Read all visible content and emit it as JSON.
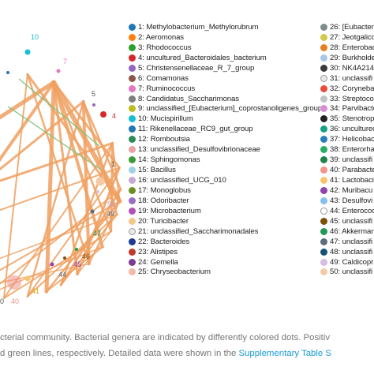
{
  "network": {
    "node_labels": [
      "10",
      "7",
      "5",
      "4",
      "1",
      "50",
      "49",
      "47",
      "46",
      "45",
      "44",
      "41",
      "40",
      "0"
    ]
  },
  "legend": {
    "col1": [
      {
        "label": "1: Methylobacterium_Methylorubrum",
        "color": "#1f77b4"
      },
      {
        "label": "2: Aeromonas",
        "color": "#ff7f0e"
      },
      {
        "label": "3: Rhodococcus",
        "color": "#2ca02c"
      },
      {
        "label": "4: uncultured_Bacteroidales_bacterium",
        "color": "#d62728"
      },
      {
        "label": "5: Christensenellaceae_R_7_group",
        "color": "#9467bd"
      },
      {
        "label": "6: Comamonas",
        "color": "#8c564b"
      },
      {
        "label": "7: Ruminococcus",
        "color": "#e377c2"
      },
      {
        "label": "8: Candidatus_Saccharimonas",
        "color": "#7f7f7f"
      },
      {
        "label": "9: unclassified_[Eubacterium]_coprostanoligenes_group",
        "color": "#bcbd22"
      },
      {
        "label": "10: Mucispirillum",
        "color": "#17becf"
      },
      {
        "label": "11: Rikenellaceae_RC9_gut_group",
        "color": "#1f77b4"
      },
      {
        "label": "12: Romboutsia",
        "color": "#2e8b57"
      },
      {
        "label": "13: unclassified_Desulfovibrionaceae",
        "color": "#e9a3a3"
      },
      {
        "label": "14: Sphingomonas",
        "color": "#3a9a3a"
      },
      {
        "label": "15: Bacillus",
        "color": "#a0d2e8"
      },
      {
        "label": "16: unclassified_UCG_010",
        "color": "#c6a9d6"
      },
      {
        "label": "17: Monoglobus",
        "color": "#6b8e23"
      },
      {
        "label": "18: Odoribacter",
        "color": "#9b6fc4"
      },
      {
        "label": "19: Microbacterium",
        "color": "#b44fb4"
      },
      {
        "label": "20: Turicibacter",
        "color": "#f4c98a"
      },
      {
        "label": "21: unclassified_Saccharimonadales",
        "color": "#e8e8e8"
      },
      {
        "label": "22: Bacteroides",
        "color": "#1f3a93"
      },
      {
        "label": "23: Alistipes",
        "color": "#c0392b"
      },
      {
        "label": "24: Gemella",
        "color": "#7d3c98"
      },
      {
        "label": "25: Chryseobacterium",
        "color": "#f5b7a8"
      }
    ],
    "col2": [
      {
        "label": "26: [Eubacteri",
        "color": "#7f8c8d"
      },
      {
        "label": "27: Jeotgalico",
        "color": "#d4c94a"
      },
      {
        "label": "28: Enterobac",
        "color": "#e67e22"
      },
      {
        "label": "29: Burkholde",
        "color": "#a6c8e8"
      },
      {
        "label": "30: NK4A214",
        "color": "#3a3a3a"
      },
      {
        "label": "31: unclassifi",
        "color": "#e8e8e8"
      },
      {
        "label": "32: Corynebac",
        "color": "#e74c3c"
      },
      {
        "label": "33: Streptococ",
        "color": "#bdc3c7"
      },
      {
        "label": "34: Parvibacte",
        "color": "#d68fd6"
      },
      {
        "label": "35: Stenotropl",
        "color": "#222222"
      },
      {
        "label": "36: uncultured",
        "color": "#16a085"
      },
      {
        "label": "37: Helicobac",
        "color": "#2980b9"
      },
      {
        "label": "38: Enterorha",
        "color": "#27ae60"
      },
      {
        "label": "39: unclassifi",
        "color": "#1e8449"
      },
      {
        "label": "40: Parabacter",
        "color": "#f1948a"
      },
      {
        "label": "41: Lactobacil",
        "color": "#f8c471"
      },
      {
        "label": "42: Muribacu",
        "color": "#8e44ad"
      },
      {
        "label": "43: Desulfovi",
        "color": "#85c1e9"
      },
      {
        "label": "44: Enterococ",
        "color": "#ffffff"
      },
      {
        "label": "45: unclassifi",
        "color": "#7e5109"
      },
      {
        "label": "46: Akkerman",
        "color": "#229954"
      },
      {
        "label": "47: unclassifi",
        "color": "#5d6d7e"
      },
      {
        "label": "48: unclassifi",
        "color": "#1a5276"
      },
      {
        "label": "49: Caldicopr",
        "color": "#d7bde2"
      },
      {
        "label": "50: unclassifi",
        "color": "#f5cba7"
      }
    ]
  },
  "caption": {
    "line1": "cterial community. Bacterial genera are indicated by differently colored dots. Positiv",
    "line2_prefix": "d green lines, respectively. Detailed data were shown in the ",
    "line2_link": "Supplementary Table S"
  }
}
